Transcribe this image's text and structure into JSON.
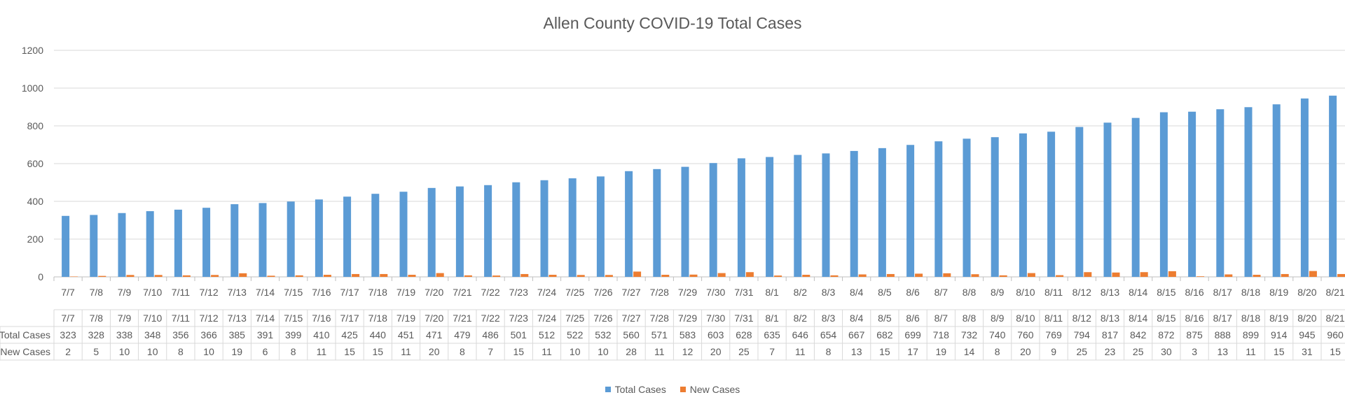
{
  "chart_data": {
    "type": "bar",
    "title": "Allen County COVID-19 Total Cases",
    "ylim": [
      0,
      1200
    ],
    "yticks": [
      0,
      200,
      400,
      600,
      800,
      1000,
      1200
    ],
    "grid": true,
    "legend_position": "bottom",
    "categories": [
      "7/7",
      "7/8",
      "7/9",
      "7/10",
      "7/11",
      "7/12",
      "7/13",
      "7/14",
      "7/15",
      "7/16",
      "7/17",
      "7/18",
      "7/19",
      "7/20",
      "7/21",
      "7/22",
      "7/23",
      "7/24",
      "7/25",
      "7/26",
      "7/27",
      "7/28",
      "7/29",
      "7/30",
      "7/31",
      "8/1",
      "8/2",
      "8/3",
      "8/4",
      "8/5",
      "8/6",
      "8/7",
      "8/8",
      "8/9",
      "8/10",
      "8/11",
      "8/12",
      "8/13",
      "8/14",
      "8/15",
      "8/16",
      "8/17",
      "8/18",
      "8/19",
      "8/20",
      "8/21"
    ],
    "series": [
      {
        "name": "Total Cases",
        "color": "#5B9BD5",
        "values": [
          323,
          328,
          338,
          348,
          356,
          366,
          385,
          391,
          399,
          410,
          425,
          440,
          451,
          471,
          479,
          486,
          501,
          512,
          522,
          532,
          560,
          571,
          583,
          603,
          628,
          635,
          646,
          654,
          667,
          682,
          699,
          718,
          732,
          740,
          760,
          769,
          794,
          817,
          842,
          872,
          875,
          888,
          899,
          914,
          945,
          960
        ]
      },
      {
        "name": "New Cases",
        "color": "#ED7D31",
        "values": [
          2,
          5,
          10,
          10,
          8,
          10,
          19,
          6,
          8,
          11,
          15,
          15,
          11,
          20,
          8,
          7,
          15,
          11,
          10,
          10,
          28,
          11,
          12,
          20,
          25,
          7,
          11,
          8,
          13,
          15,
          17,
          19,
          14,
          8,
          20,
          9,
          25,
          23,
          25,
          30,
          3,
          13,
          11,
          15,
          31,
          15
        ]
      }
    ]
  }
}
